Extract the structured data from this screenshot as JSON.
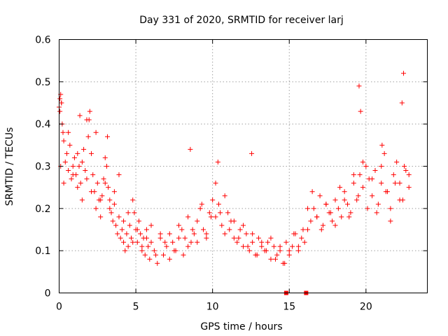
{
  "chart_data": {
    "type": "scatter",
    "title": "Day 331 of 2020, SRMTID for receiver larj",
    "xlabel": "GPS time / hours",
    "ylabel": "SRMTID / TECUs",
    "xlim": [
      0,
      24
    ],
    "ylim": [
      0,
      0.6
    ],
    "x_ticks": [
      0,
      5,
      10,
      15,
      20
    ],
    "x_tick_labels": [
      "0",
      "5",
      "10",
      "15",
      "20"
    ],
    "y_ticks": [
      0,
      0.1,
      0.2,
      0.3,
      0.4,
      0.5,
      0.6
    ],
    "y_tick_labels": [
      "0",
      "0.1",
      "0.2",
      "0.3",
      "0.4",
      "0.5",
      "0.6"
    ],
    "grid": true,
    "marker": "+",
    "color": "#ff0000",
    "series": [
      {
        "name": "SRMTID",
        "x": [
          0.0,
          0.05,
          0.1,
          0.15,
          0.2,
          0.3,
          0.4,
          0.5,
          0.6,
          0.7,
          0.8,
          0.9,
          1.0,
          1.1,
          1.2,
          1.3,
          1.4,
          1.5,
          1.6,
          1.7,
          1.8,
          1.9,
          2.0,
          2.1,
          2.2,
          2.3,
          2.4,
          2.5,
          2.6,
          2.7,
          2.8,
          2.9,
          3.0,
          3.1,
          3.2,
          3.3,
          3.4,
          3.5,
          3.6,
          3.7,
          3.8,
          3.9,
          4.0,
          4.1,
          4.2,
          4.3,
          4.4,
          4.5,
          4.6,
          4.7,
          4.8,
          4.9,
          5.0,
          5.1,
          5.2,
          5.3,
          5.4,
          5.5,
          5.6,
          5.7,
          5.8,
          5.9,
          6.0,
          6.2,
          6.4,
          6.6,
          6.8,
          7.0,
          7.2,
          7.4,
          7.6,
          7.8,
          8.0,
          8.2,
          8.4,
          8.6,
          8.8,
          9.0,
          9.2,
          9.4,
          9.6,
          9.8,
          10.0,
          10.2,
          10.4,
          10.6,
          10.8,
          11.0,
          11.2,
          11.4,
          11.6,
          11.8,
          12.0,
          12.2,
          12.4,
          12.6,
          12.8,
          13.0,
          13.2,
          13.4,
          13.6,
          13.8,
          14.0,
          14.2,
          14.4,
          14.6,
          14.8,
          15.0,
          15.2,
          15.4,
          15.6,
          15.8,
          16.0,
          16.2,
          16.4,
          16.6,
          16.8,
          17.0,
          17.2,
          17.4,
          17.6,
          17.8,
          18.0,
          18.2,
          18.4,
          18.6,
          18.8,
          19.0,
          19.2,
          19.4,
          19.6,
          19.8,
          20.0,
          20.2,
          20.4,
          20.6,
          20.8,
          21.0,
          21.2,
          21.4,
          21.6,
          21.8,
          22.0,
          22.2,
          22.4,
          22.6,
          22.8,
          0.1,
          0.3,
          0.6,
          0.9,
          1.2,
          1.5,
          1.8,
          2.1,
          2.4,
          2.7,
          3.0,
          3.3,
          3.6,
          3.9,
          4.2,
          4.5,
          4.8,
          5.1,
          5.4,
          5.7,
          6.0,
          6.3,
          6.6,
          6.9,
          7.2,
          7.5,
          7.8,
          8.1,
          8.4,
          8.7,
          9.0,
          9.3,
          9.6,
          9.9,
          10.2,
          10.5,
          10.8,
          11.1,
          11.4,
          11.7,
          12.0,
          12.3,
          12.6,
          12.9,
          13.2,
          13.5,
          13.8,
          14.1,
          14.4,
          14.7,
          15.0,
          15.3,
          15.6,
          15.9,
          16.2,
          16.5,
          16.8,
          17.1,
          17.4,
          17.7,
          18.0,
          18.3,
          18.6,
          18.9,
          19.2,
          19.5,
          19.8,
          20.1,
          20.4,
          20.7,
          21.0,
          21.3,
          21.6,
          21.9,
          22.2,
          22.5,
          22.8,
          0.05,
          0.15,
          0.25,
          1.35,
          1.95,
          3.15,
          8.55,
          10.35,
          12.55,
          19.55,
          19.65,
          21.05,
          22.35,
          22.45,
          14.8,
          16.1
        ],
        "y": [
          0.44,
          0.46,
          0.47,
          0.45,
          0.4,
          0.36,
          0.31,
          0.33,
          0.29,
          0.35,
          0.27,
          0.3,
          0.32,
          0.28,
          0.25,
          0.3,
          0.26,
          0.22,
          0.34,
          0.29,
          0.41,
          0.37,
          0.43,
          0.33,
          0.28,
          0.24,
          0.2,
          0.26,
          0.22,
          0.18,
          0.23,
          0.27,
          0.32,
          0.3,
          0.25,
          0.22,
          0.19,
          0.17,
          0.21,
          0.16,
          0.14,
          0.18,
          0.13,
          0.15,
          0.12,
          0.1,
          0.14,
          0.11,
          0.16,
          0.13,
          0.22,
          0.19,
          0.15,
          0.12,
          0.17,
          0.14,
          0.1,
          0.13,
          0.09,
          0.15,
          0.11,
          0.08,
          0.12,
          0.1,
          0.07,
          0.13,
          0.09,
          0.11,
          0.14,
          0.12,
          0.1,
          0.16,
          0.15,
          0.13,
          0.18,
          0.12,
          0.14,
          0.17,
          0.2,
          0.15,
          0.13,
          0.19,
          0.22,
          0.18,
          0.21,
          0.16,
          0.14,
          0.19,
          0.17,
          0.13,
          0.12,
          0.15,
          0.11,
          0.14,
          0.1,
          0.12,
          0.09,
          0.13,
          0.11,
          0.1,
          0.12,
          0.08,
          0.11,
          0.09,
          0.1,
          0.07,
          0.12,
          0.09,
          0.11,
          0.14,
          0.1,
          0.13,
          0.12,
          0.15,
          0.17,
          0.2,
          0.18,
          0.23,
          0.16,
          0.21,
          0.19,
          0.17,
          0.22,
          0.2,
          0.18,
          0.24,
          0.21,
          0.19,
          0.26,
          0.22,
          0.28,
          0.25,
          0.3,
          0.27,
          0.23,
          0.29,
          0.21,
          0.26,
          0.33,
          0.24,
          0.2,
          0.28,
          0.31,
          0.26,
          0.22,
          0.29,
          0.25,
          0.3,
          0.26,
          0.38,
          0.28,
          0.33,
          0.31,
          0.27,
          0.24,
          0.38,
          0.22,
          0.26,
          0.2,
          0.24,
          0.28,
          0.17,
          0.19,
          0.12,
          0.15,
          0.11,
          0.13,
          0.16,
          0.09,
          0.14,
          0.12,
          0.08,
          0.1,
          0.13,
          0.09,
          0.11,
          0.15,
          0.12,
          0.21,
          0.14,
          0.18,
          0.26,
          0.19,
          0.23,
          0.15,
          0.17,
          0.13,
          0.16,
          0.11,
          0.14,
          0.09,
          0.12,
          0.1,
          0.13,
          0.08,
          0.11,
          0.07,
          0.1,
          0.14,
          0.11,
          0.15,
          0.2,
          0.24,
          0.18,
          0.15,
          0.21,
          0.19,
          0.16,
          0.25,
          0.22,
          0.18,
          0.28,
          0.23,
          0.31,
          0.2,
          0.27,
          0.19,
          0.3,
          0.24,
          0.17,
          0.26,
          0.22,
          0.3,
          0.28,
          0.43,
          0.45,
          0.38,
          0.42,
          0.41,
          0.37,
          0.34,
          0.31,
          0.33,
          0.49,
          0.43,
          0.35,
          0.45,
          0.52,
          0.0,
          0.0
        ]
      }
    ]
  }
}
